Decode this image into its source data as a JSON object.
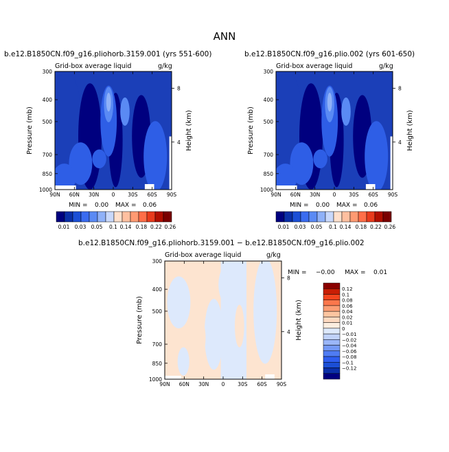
{
  "page_title": "ANN",
  "colors": {
    "pos_scale": [
      "#00007f",
      "#0a2fa8",
      "#1b4fd6",
      "#3a6cf0",
      "#5a8af4",
      "#8fb1f8",
      "#c8d8fb",
      "#ffe0cc",
      "#ffc0a0",
      "#ff9a72",
      "#ff6e48",
      "#e83a1c",
      "#b00e00",
      "#7a0000"
    ],
    "diff_scale": [
      "#00007f",
      "#0a2fa8",
      "#1b4fd6",
      "#2e5df0",
      "#4f7cf3",
      "#7499f6",
      "#9bb6f8",
      "#c0d2fa",
      "#dde9fc",
      "#fdeee0",
      "#fdd9c0",
      "#fdc5a0",
      "#fc9e74",
      "#fb774c",
      "#f4451e",
      "#c81e05",
      "#8a0000"
    ],
    "fill_dark": "#00007f",
    "fill_mid": "#1b3fb8",
    "fill_light": "#2e5ee6",
    "fill_lighter": "#5a8af4",
    "fill_pale": "#8fb1f8",
    "diff_pos": "#fde4d0",
    "diff_neg": "#dde9fc"
  },
  "chart_data": [
    {
      "type": "heatmap",
      "case": "b.e12.B1850CN.f09_g16.pliohorb.3159.001 (yrs 551-600)",
      "variable": "Grid-box average liquid",
      "units": "g/kg",
      "ylabel": "Pressure (mb)",
      "right_label": "Height (km)",
      "x_ticks": [
        "90N",
        "60N",
        "30N",
        "0",
        "30S",
        "60S",
        "90S"
      ],
      "y_ticks": [
        "300",
        "400",
        "500",
        "700",
        "850",
        "1000"
      ],
      "height_ticks": [
        "8",
        "4"
      ],
      "min_text": "MIN =",
      "min_value": "0.00",
      "max_text": "MAX =",
      "max_value": "0.06"
    },
    {
      "type": "heatmap",
      "case": "b.e12.B1850CN.f09_g16.plio.002 (yrs 601-650)",
      "variable": "Grid-box average liquid",
      "units": "g/kg",
      "ylabel": "Pressure (mb)",
      "right_label": "Height (km)",
      "x_ticks": [
        "90N",
        "60N",
        "30N",
        "0",
        "30S",
        "60S",
        "90S"
      ],
      "y_ticks": [
        "300",
        "400",
        "500",
        "700",
        "850",
        "1000"
      ],
      "height_ticks": [
        "8",
        "4"
      ],
      "min_text": "MIN =",
      "min_value": "0.00",
      "max_text": "MAX =",
      "max_value": "0.06"
    },
    {
      "type": "heatmap",
      "case": "b.e12.B1850CN.f09_g16.pliohorb.3159.001 − b.e12.B1850CN.f09_g16.plio.002",
      "variable": "Grid-box average liquid",
      "units": "g/kg",
      "ylabel": "Pressure (mb)",
      "right_label": "Height (km)",
      "x_ticks": [
        "90N",
        "60N",
        "30N",
        "0",
        "30S",
        "60S",
        "90S"
      ],
      "y_ticks": [
        "300",
        "400",
        "500",
        "700",
        "850",
        "1000"
      ],
      "height_ticks": [
        "8",
        "4"
      ],
      "min_text": "MIN =",
      "min_value": "−0.00",
      "max_text": "MAX =",
      "max_value": "0.01"
    }
  ],
  "colorbar_top": {
    "labels": [
      "0.01",
      "0.03",
      "0.05",
      "0.1",
      "0.14",
      "0.18",
      "0.22",
      "0.26"
    ]
  },
  "colorbar_diff": {
    "labels": [
      "0.12",
      "0.1",
      "0.08",
      "0.06",
      "0.04",
      "0.02",
      "0.01",
      "0",
      "−0.01",
      "−0.02",
      "−0.04",
      "−0.06",
      "−0.08",
      "−0.1",
      "−0.12"
    ]
  }
}
